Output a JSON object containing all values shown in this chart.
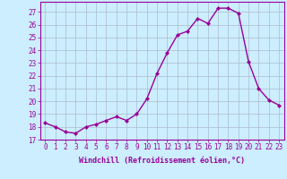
{
  "x": [
    0,
    1,
    2,
    3,
    4,
    5,
    6,
    7,
    8,
    9,
    10,
    11,
    12,
    13,
    14,
    15,
    16,
    17,
    18,
    19,
    20,
    21,
    22,
    23
  ],
  "y": [
    18.3,
    18.0,
    17.6,
    17.5,
    18.0,
    18.2,
    18.5,
    18.8,
    18.5,
    19.0,
    20.2,
    22.2,
    23.8,
    25.2,
    25.5,
    26.5,
    26.1,
    27.3,
    27.3,
    26.9,
    23.1,
    21.0,
    20.1,
    19.7
  ],
  "line_color": "#990099",
  "marker": "D",
  "marker_size": 2.0,
  "background_color": "#cceeff",
  "grid_color": "#aabbcc",
  "xlabel": "Windchill (Refroidissement éolien,°C)",
  "xlim": [
    -0.5,
    23.5
  ],
  "ylim": [
    17,
    27.8
  ],
  "yticks": [
    17,
    18,
    19,
    20,
    21,
    22,
    23,
    24,
    25,
    26,
    27
  ],
  "xticks": [
    0,
    1,
    2,
    3,
    4,
    5,
    6,
    7,
    8,
    9,
    10,
    11,
    12,
    13,
    14,
    15,
    16,
    17,
    18,
    19,
    20,
    21,
    22,
    23
  ],
  "tick_color": "#990099",
  "label_color": "#990099",
  "spine_color": "#990099",
  "tick_fontsize": 5.5,
  "xlabel_fontsize": 6.0,
  "linewidth": 1.0
}
